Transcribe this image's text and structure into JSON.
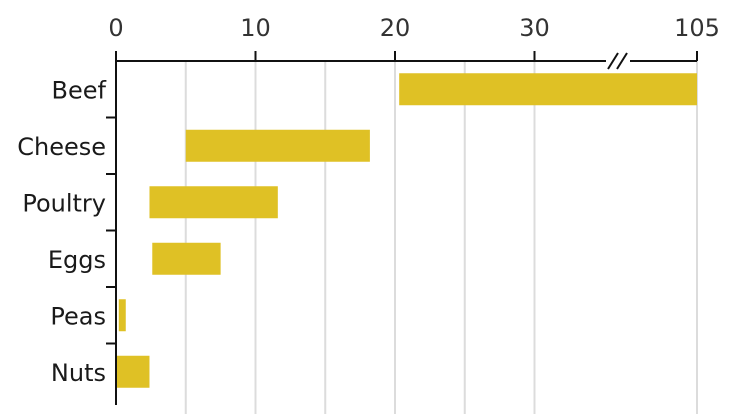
{
  "chart_data": {
    "type": "bar",
    "orientation": "horizontal",
    "bar_style": "floating-range",
    "categories": [
      "Beef",
      "Cheese",
      "Poultry",
      "Eggs",
      "Peas",
      "Nuts"
    ],
    "series": [
      {
        "ranges": [
          [
            20.3,
            105
          ],
          [
            5,
            18.2
          ],
          [
            2.4,
            11.6
          ],
          [
            2.6,
            7.5
          ],
          [
            0.2,
            0.7
          ],
          [
            0,
            2.4
          ]
        ]
      }
    ],
    "x_ticks": [
      "0",
      "10",
      "20",
      "30",
      "105"
    ],
    "x_tick_values": [
      0,
      10,
      20,
      30,
      105
    ],
    "xlim": [
      0,
      105
    ],
    "axis_break": [
      35,
      105
    ],
    "x_axis_position": "top",
    "grid": true,
    "colors": {
      "bar": "#DFC125",
      "grid": "#dcdcdc",
      "axis": "#111111"
    },
    "title": "",
    "xlabel": "",
    "ylabel": ""
  }
}
